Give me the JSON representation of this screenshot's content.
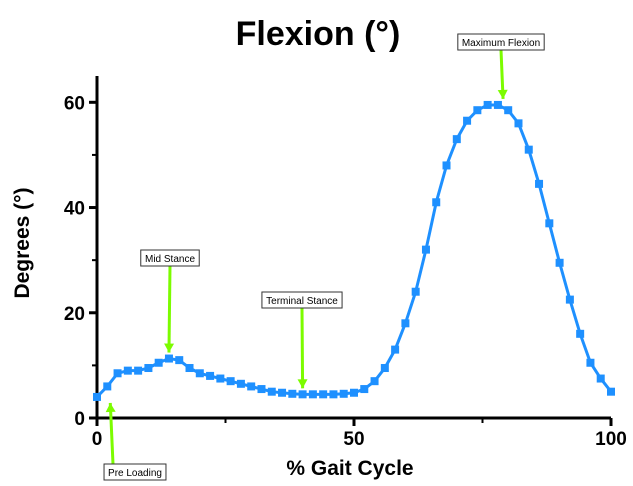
{
  "chart_data": {
    "type": "line",
    "title": "Flexion (°)",
    "xlabel": "% Gait Cycle",
    "ylabel": "Degrees (°)",
    "xlim": [
      0,
      100
    ],
    "ylim": [
      0,
      65
    ],
    "xticks": [
      0,
      50,
      100
    ],
    "yticks": [
      0,
      20,
      40,
      60
    ],
    "grid": false,
    "legend": "none",
    "series": [
      {
        "color": "#1e90ff",
        "marker": "square",
        "x": [
          0,
          2,
          4,
          6,
          8,
          10,
          12,
          14,
          16,
          18,
          20,
          22,
          24,
          26,
          28,
          30,
          32,
          34,
          36,
          38,
          40,
          42,
          44,
          46,
          48,
          50,
          52,
          54,
          56,
          58,
          60,
          62,
          64,
          66,
          68,
          70,
          72,
          74,
          76,
          78,
          80,
          82,
          84,
          86,
          88,
          90,
          92,
          94,
          96,
          98,
          100
        ],
        "y": [
          4,
          6,
          8.5,
          9,
          9,
          9.5,
          10.5,
          11.3,
          11,
          9.5,
          8.5,
          8,
          7.5,
          7,
          6.5,
          6,
          5.5,
          5,
          4.8,
          4.6,
          4.5,
          4.5,
          4.5,
          4.5,
          4.6,
          4.8,
          5.5,
          7,
          9.5,
          13,
          18,
          24,
          32,
          41,
          48,
          53,
          56.5,
          58.5,
          59.5,
          59.5,
          58.5,
          56,
          51,
          44.5,
          37,
          29.5,
          22.5,
          16,
          10.5,
          7.5,
          5
        ]
      }
    ],
    "annotations": [
      {
        "text": "Maximum Flexion",
        "x": 79,
        "y": 59.5
      },
      {
        "text": "Mid Stance",
        "x": 14,
        "y": 11.3
      },
      {
        "text": "Terminal Stance",
        "x": 40,
        "y": 4.5
      },
      {
        "text": "Pre Loading",
        "x": 2,
        "y": 4
      }
    ],
    "annotation_arrow_color": "#7cfc00"
  }
}
